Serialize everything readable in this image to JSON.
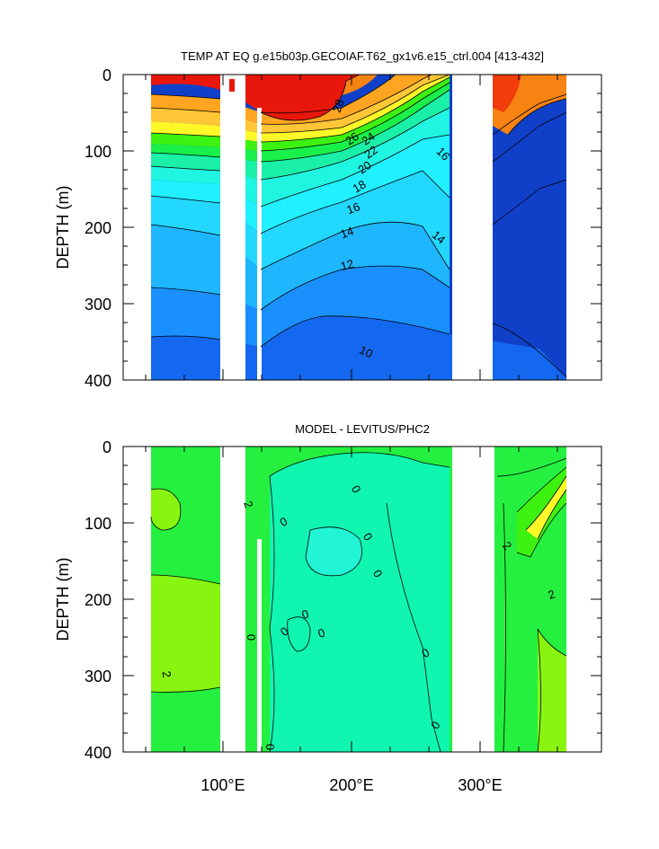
{
  "colors": {
    "red": "#e8170c",
    "red_orange": "#f23d0c",
    "orange": "#f78313",
    "light_orange": "#ffa521",
    "yellow_orange": "#ffc637",
    "yellow": "#fff829",
    "yellow_green": "#c5f51f",
    "bright_green": "#3df210",
    "green": "#19f04a",
    "sea_green": "#1bf0a8",
    "aqua": "#20f5e2",
    "cyan": "#20f0ff",
    "sky": "#22d8ff",
    "light_blue": "#1eb6ff",
    "blue": "#1a90ff",
    "deep_blue": "#1468f0",
    "navy_blue": "#1040c8",
    "lime": "#88f510",
    "model_green": "#25f040",
    "model_aqua": "#10f5b0",
    "model_cyan": "#22f5d5"
  },
  "chart_data": [
    {
      "type": "heatmap",
      "title": "TEMP AT EQ g.e15b03p.GECOIAF.T62_gx1v6.e15_ctrl.004 [413-432]",
      "xlabel": "",
      "ylabel": "DEPTH (m)",
      "xlim": [
        30,
        390
      ],
      "ylim": [
        400,
        0
      ],
      "x_ticks": [
        "100°E",
        "200°E",
        "300°E"
      ],
      "y_ticks": [
        "0",
        "100",
        "200",
        "300",
        "400"
      ],
      "contour_labels": [
        "28",
        "26",
        "24",
        "22",
        "20",
        "18",
        "16",
        "16",
        "14",
        "14",
        "12",
        "10"
      ]
    },
    {
      "type": "heatmap",
      "title": "MODEL - LEVITUS/PHC2",
      "xlabel": "",
      "ylabel": "DEPTH (m)",
      "xlim": [
        30,
        390
      ],
      "ylim": [
        400,
        0
      ],
      "x_ticks": [
        "100°E",
        "200°E",
        "300°E"
      ],
      "y_ticks": [
        "0",
        "100",
        "200",
        "300",
        "400"
      ],
      "contour_labels": [
        "0",
        "0",
        "0",
        "0",
        "0",
        "0",
        "0",
        "0",
        "0",
        "0",
        "0",
        "2",
        "2",
        "2",
        "2"
      ]
    }
  ]
}
